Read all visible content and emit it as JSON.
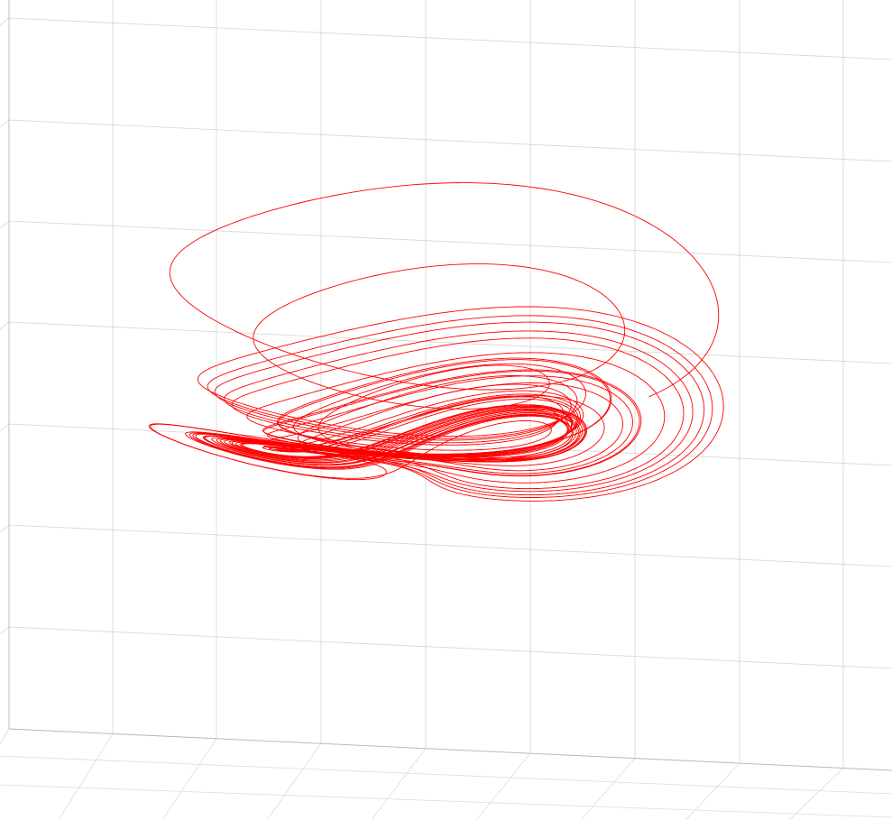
{
  "chart_data": {
    "type": "line",
    "dimensions": 3,
    "title": "",
    "xlabel": "",
    "ylabel": "",
    "zlabel": "",
    "grid": true,
    "legend": "none",
    "tick_labels_visible": false,
    "series": [
      {
        "color": "#ff0000",
        "style": "solid",
        "attractor_shape": "two-lobed chaotic trajectory",
        "x": [
          -0.15,
          0.2,
          0.42,
          0.48,
          0.38,
          0.15,
          -0.08,
          -0.28,
          -0.4,
          -0.45,
          -0.45,
          -0.4,
          -0.3,
          -0.35,
          -0.38,
          -0.32,
          -0.2,
          -0.05,
          0.12,
          0.3,
          0.4,
          0.32,
          0.1,
          -0.2,
          -0.42,
          -0.52,
          -0.48,
          -0.35,
          -0.2,
          0.0,
          0.2,
          0.36,
          0.42,
          0.3,
          0.05,
          0.0,
          0.15,
          0.32,
          0.3,
          0.1,
          -0.1,
          -0.15
        ],
        "y": [
          0.62,
          0.55,
          0.3,
          -0.05,
          -0.38,
          -0.58,
          -0.62,
          -0.5,
          -0.3,
          -0.05,
          0.2,
          0.45,
          0.52,
          0.4,
          0.22,
          0.12,
          0.05,
          -0.02,
          -0.12,
          -0.22,
          -0.36,
          -0.5,
          -0.6,
          -0.55,
          -0.4,
          -0.2,
          0.05,
          0.25,
          0.35,
          0.3,
          0.15,
          -0.05,
          -0.22,
          -0.3,
          -0.2,
          0.0,
          0.08,
          0.05,
          -0.1,
          -0.15,
          -0.05,
          0.1
        ],
        "z": [
          0.2,
          0.1,
          0.0,
          -0.1,
          -0.18,
          -0.15,
          -0.05,
          0.05,
          0.1,
          0.05,
          -0.05,
          -0.1,
          0.0,
          0.1,
          0.15,
          0.05,
          -0.05,
          0.0,
          0.05,
          0.1,
          0.05,
          -0.05,
          -0.15,
          -0.1,
          0.0,
          0.05,
          0.1,
          0.15,
          0.1,
          0.0,
          -0.08,
          -0.12,
          -0.05,
          0.05,
          0.1,
          0.0,
          -0.05,
          0.0,
          0.05,
          0.02,
          0.0,
          0.05
        ]
      }
    ]
  }
}
